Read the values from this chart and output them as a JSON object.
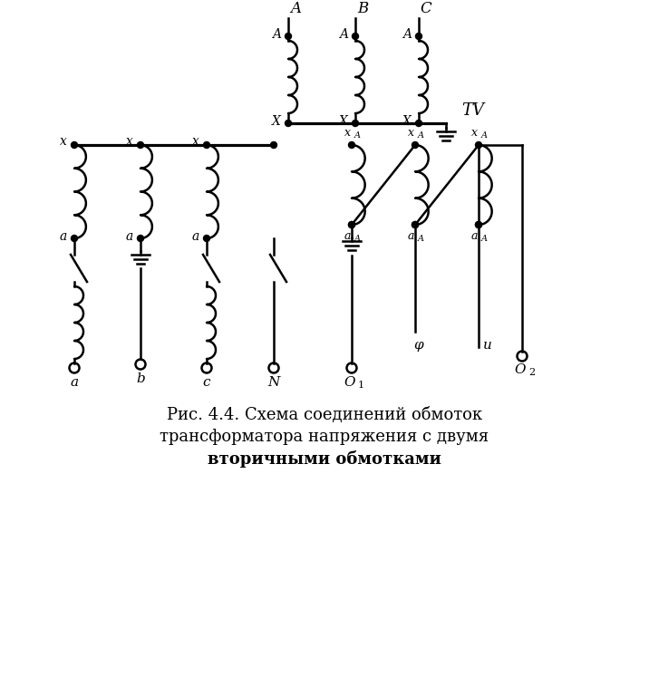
{
  "caption_line1": "Рис. 4.4. Схема соединений обмоток",
  "caption_line2": "трансформатора напряжения с двумя",
  "caption_line3": "вторичными обмотками",
  "bg_color": "#ffffff",
  "line_color": "#000000",
  "figsize": [
    7.16,
    7.68
  ],
  "dpi": 100
}
